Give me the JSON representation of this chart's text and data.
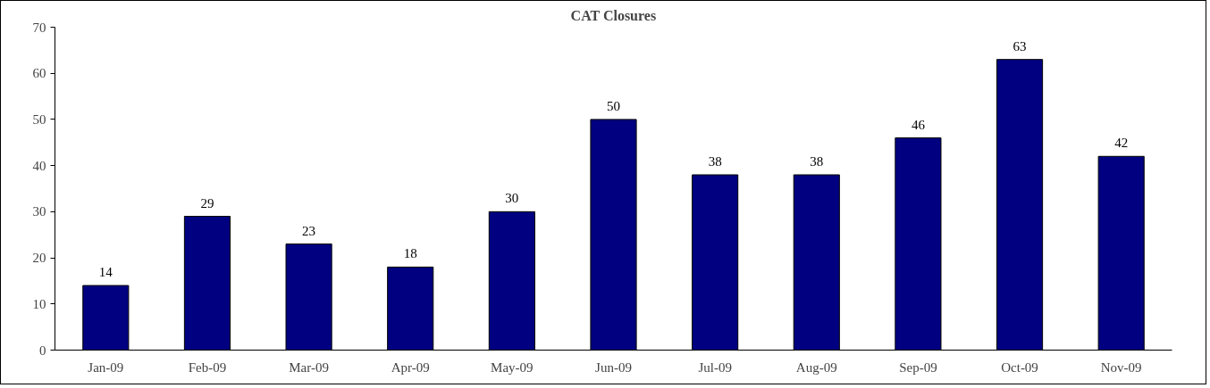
{
  "chart_data": {
    "type": "bar",
    "title": "CAT Closures",
    "categories": [
      "Jan-09",
      "Feb-09",
      "Mar-09",
      "Apr-09",
      "May-09",
      "Jun-09",
      "Jul-09",
      "Aug-09",
      "Sep-09",
      "Oct-09",
      "Nov-09"
    ],
    "values": [
      14,
      29,
      23,
      18,
      30,
      50,
      38,
      38,
      46,
      63,
      42
    ],
    "color": "#000080",
    "ylim": [
      0,
      70
    ],
    "yticks": [
      0,
      10,
      20,
      30,
      40,
      50,
      60,
      70
    ],
    "data_labels": true,
    "grid": false
  }
}
